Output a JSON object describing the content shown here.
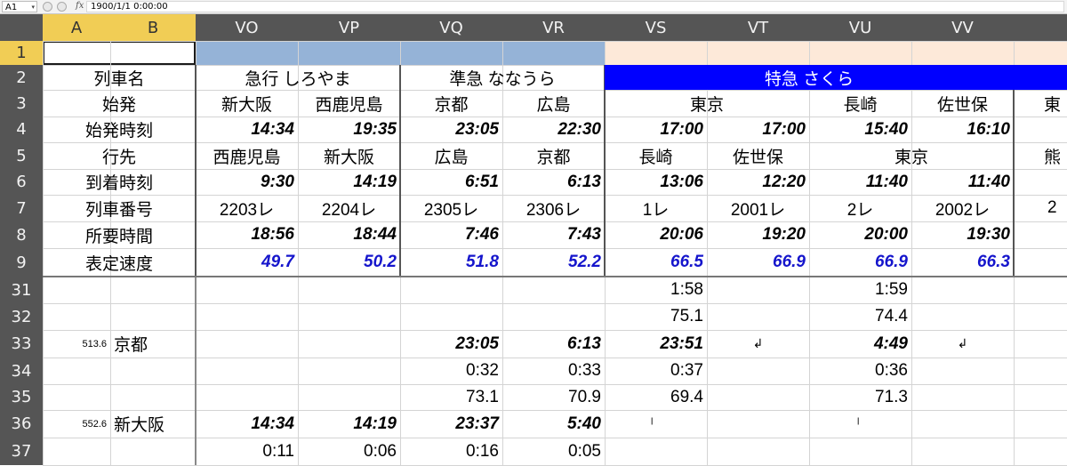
{
  "name_box": "A1",
  "formula": "1900/1/1  0:00:00",
  "columns": [
    "A",
    "B",
    "VO",
    "VP",
    "VQ",
    "VR",
    "VS",
    "VT",
    "VU",
    "VV"
  ],
  "rows": [
    "1",
    "2",
    "3",
    "4",
    "5",
    "6",
    "7",
    "8",
    "9",
    "31",
    "32",
    "33",
    "34",
    "35",
    "36",
    "37"
  ],
  "labels": {
    "r2": "列車名",
    "r3": "始発",
    "r4": "始発時刻",
    "r5": "行先",
    "r6": "到着時刻",
    "r7": "列車番号",
    "r8": "所要時間",
    "r9": "表定速度",
    "r33_km": "513.6",
    "r33_st": "京都",
    "r36_km": "552.6",
    "r36_st": "新大阪"
  },
  "trains": {
    "shiroyama": "急行 しろやま",
    "nanaura": "準急 ななうら",
    "sakura": "特急 さくら",
    "more": "東"
  },
  "cells": {
    "r3": {
      "VO": "新大阪",
      "VP": "西鹿児島",
      "VQ": "京都",
      "VR": "広島",
      "VS": "東京",
      "VU": "長崎",
      "VV": "佐世保",
      "VW": "東"
    },
    "r4": {
      "VO": "14:34",
      "VP": "19:35",
      "VQ": "23:05",
      "VR": "22:30",
      "VS": "17:00",
      "VT": "17:00",
      "VU": "15:40",
      "VV": "16:10"
    },
    "r5": {
      "VO": "西鹿児島",
      "VP": "新大阪",
      "VQ": "広島",
      "VR": "京都",
      "VS": "長崎",
      "VT": "佐世保",
      "VU": "東京",
      "VW": "熊"
    },
    "r6": {
      "VO": "9:30",
      "VP": "14:19",
      "VQ": "6:51",
      "VR": "6:13",
      "VS": "13:06",
      "VT": "12:20",
      "VU": "11:40",
      "VV": "11:40"
    },
    "r7": {
      "VO": "2203レ",
      "VP": "2204レ",
      "VQ": "2305レ",
      "VR": "2306レ",
      "VS": "1レ",
      "VT": "2001レ",
      "VU": "2レ",
      "VV": "2002レ",
      "VW": "2"
    },
    "r8": {
      "VO": "18:56",
      "VP": "18:44",
      "VQ": "7:46",
      "VR": "7:43",
      "VS": "20:06",
      "VT": "19:20",
      "VU": "20:00",
      "VV": "19:30"
    },
    "r9": {
      "VO": "49.7",
      "VP": "50.2",
      "VQ": "51.8",
      "VR": "52.2",
      "VS": "66.5",
      "VT": "66.9",
      "VU": "66.9",
      "VV": "66.3"
    },
    "r31": {
      "VS": "1:58",
      "VU": "1:59"
    },
    "r32": {
      "VS": "75.1",
      "VU": "74.4"
    },
    "r33": {
      "VQ": "23:05",
      "VR": "6:13",
      "VS": "23:51",
      "VT": "↲",
      "VU": "4:49",
      "VV": "↲"
    },
    "r34": {
      "VQ": "0:32",
      "VR": "0:33",
      "VS": "0:37",
      "VU": "0:36"
    },
    "r35": {
      "VQ": "73.1",
      "VR": "70.9",
      "VS": "69.4",
      "VU": "71.3"
    },
    "r36": {
      "VO": "14:34",
      "VP": "14:19",
      "VQ": "23:37",
      "VR": "5:40",
      "VS": "ˡ",
      "VU": "ˡ"
    },
    "r37": {
      "VO": "0:11",
      "VP": "0:06",
      "VQ": "0:16",
      "VR": "0:05"
    }
  },
  "colors": {
    "header_bg": "#555555",
    "selected_header": "#f1cd55",
    "row1_blue": "#95b3d7",
    "row1_peach": "#fde9d9",
    "sakura_band": "#0000ff",
    "speed_text": "#1515cc"
  }
}
